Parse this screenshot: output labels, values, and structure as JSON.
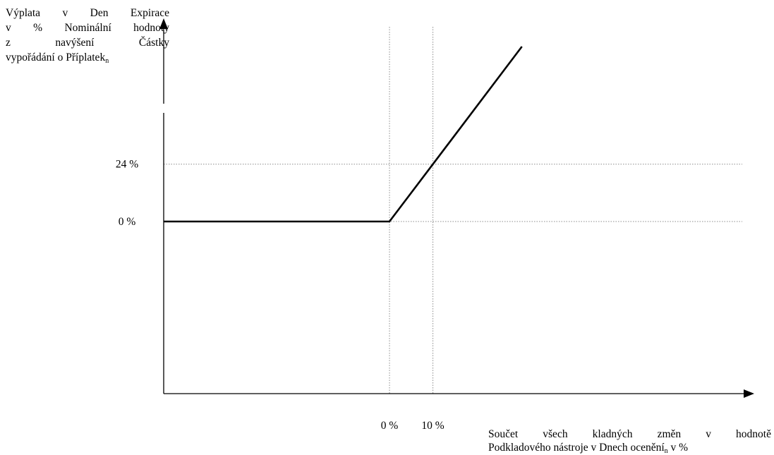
{
  "chart_data": {
    "type": "line",
    "ylabel": {
      "lines": [
        "Výplata v Den Expirace",
        "v % Nominální hodnoty",
        "z navýšení Částky",
        "vypořádání o Příplatek"
      ],
      "subscript": "n"
    },
    "xlabel": {
      "line1": "Součet všech kladných změn v hodnotě",
      "line2_before": "Podkladového nástroje v Dnech ocenění",
      "line2_sub": "n",
      "line2_after": " v %"
    },
    "x_ticks": [
      {
        "label": "0 %",
        "value": 0
      },
      {
        "label": "10 %",
        "value": 10
      }
    ],
    "y_ticks": [
      {
        "label": "24 %",
        "value": 24
      },
      {
        "label": "0 %",
        "value": 0
      }
    ],
    "series": [
      {
        "x": [
          -52,
          0,
          10,
          30.5
        ],
        "y": [
          0,
          0,
          24,
          73.2
        ]
      }
    ],
    "xlim": [
      -52,
      84
    ],
    "ylim": [
      -72,
      85
    ],
    "grid": "dotted reference lines at tick values",
    "colors": {
      "line": "#000000",
      "axis": "#000000",
      "grid": "#8c8c8c"
    }
  }
}
